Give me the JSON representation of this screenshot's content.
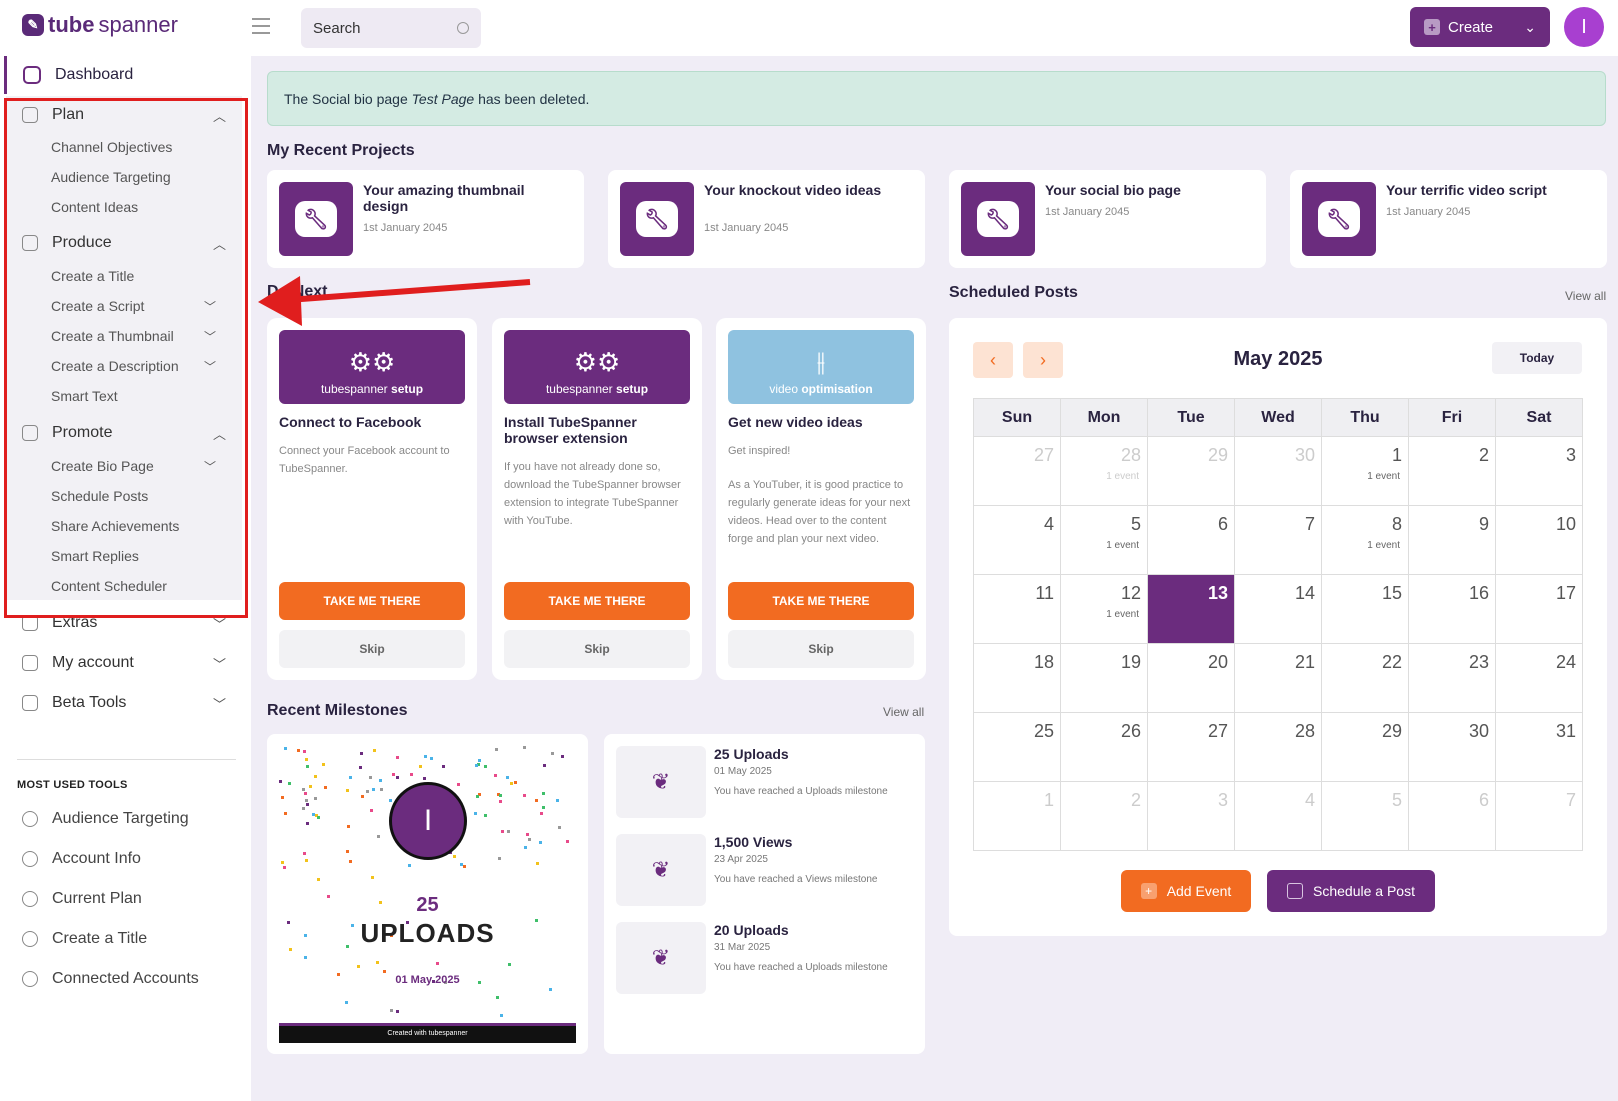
{
  "brand": {
    "logo_bold": "tube",
    "logo_rest": "spanner"
  },
  "search": {
    "placeholder": "Search"
  },
  "header": {
    "create_label": "Create",
    "avatar_letter": "I"
  },
  "sidebar": {
    "dashboard": "Dashboard",
    "plan": {
      "label": "Plan",
      "items": [
        "Channel Objectives",
        "Audience Targeting",
        "Content Ideas"
      ]
    },
    "produce": {
      "label": "Produce",
      "items": [
        "Create a Title",
        "Create a Script",
        "Create a Thumbnail",
        "Create a Description",
        "Smart Text"
      ]
    },
    "promote": {
      "label": "Promote",
      "items": [
        "Create Bio Page",
        "Schedule Posts",
        "Share Achievements",
        "Smart Replies",
        "Content Scheduler"
      ]
    },
    "extras": "Extras",
    "my_account": "My account",
    "beta_tools": "Beta Tools",
    "most_used_title": "MOST USED TOOLS",
    "most_used": [
      "Audience Targeting",
      "Account Info",
      "Current Plan",
      "Create a Title",
      "Connected Accounts"
    ]
  },
  "alert": {
    "prefix": "The Social bio page ",
    "name": "Test Page",
    "suffix": " has been deleted."
  },
  "recent_projects": {
    "title": "My Recent Projects",
    "items": [
      {
        "title": "Your amazing thumbnail design",
        "date": "1st January 2045"
      },
      {
        "title": "Your knockout video ideas",
        "date": "1st January 2045"
      },
      {
        "title": "Your social bio page",
        "date": "1st January 2045"
      },
      {
        "title": "Your terrific video script",
        "date": "1st January 2045"
      }
    ]
  },
  "do_next": {
    "title": "Do Next",
    "cards": [
      {
        "banner_a": "tubespanner",
        "banner_b": "setup",
        "title": "Connect to Facebook",
        "desc": "Connect your Facebook account to TubeSpanner.",
        "desc2": "",
        "cta": "TAKE ME THERE",
        "skip": "Skip"
      },
      {
        "banner_a": "tubespanner",
        "banner_b": "setup",
        "title": "Install TubeSpanner browser extension",
        "desc": "If you have not already done so, download the TubeSpanner browser extension to integrate TubeSpanner with YouTube.",
        "desc2": "",
        "cta": "TAKE ME THERE",
        "skip": "Skip"
      },
      {
        "banner_a": "video",
        "banner_b": "optimisation",
        "title": "Get new video ideas",
        "desc": "Get inspired!",
        "desc2": "As a YouTuber, it is good practice to regularly generate ideas for your next videos. Head over to the content forge and plan your next video.",
        "cta": "TAKE ME THERE",
        "skip": "Skip"
      }
    ]
  },
  "milestones": {
    "title": "Recent Milestones",
    "view_all": "View all",
    "feature": {
      "avatar_letter": "I",
      "number": "25",
      "label": "UPLOADS",
      "date": "01 May 2025",
      "footer": "Created with tubespanner"
    },
    "items": [
      {
        "title": "25 Uploads",
        "date": "01 May 2025",
        "text": "You have reached a Uploads milestone"
      },
      {
        "title": "1,500 Views",
        "date": "23 Apr 2025",
        "text": "You have reached a Views milestone"
      },
      {
        "title": "20 Uploads",
        "date": "31 Mar 2025",
        "text": "You have reached a Uploads milestone"
      }
    ]
  },
  "scheduled": {
    "title": "Scheduled Posts",
    "view_all": "View all",
    "month": "May 2025",
    "today": "Today",
    "weekdays": [
      "Sun",
      "Mon",
      "Tue",
      "Wed",
      "Thu",
      "Fri",
      "Sat"
    ],
    "weeks": [
      [
        {
          "d": "27",
          "o": true
        },
        {
          "d": "28",
          "o": true,
          "e": "1 event"
        },
        {
          "d": "29",
          "o": true
        },
        {
          "d": "30",
          "o": true
        },
        {
          "d": "1",
          "e": "1 event"
        },
        {
          "d": "2"
        },
        {
          "d": "3"
        }
      ],
      [
        {
          "d": "4"
        },
        {
          "d": "5",
          "e": "1 event"
        },
        {
          "d": "6"
        },
        {
          "d": "7"
        },
        {
          "d": "8",
          "e": "1 event"
        },
        {
          "d": "9"
        },
        {
          "d": "10"
        }
      ],
      [
        {
          "d": "11"
        },
        {
          "d": "12",
          "e": "1 event"
        },
        {
          "d": "13",
          "s": true
        },
        {
          "d": "14"
        },
        {
          "d": "15"
        },
        {
          "d": "16"
        },
        {
          "d": "17"
        }
      ],
      [
        {
          "d": "18"
        },
        {
          "d": "19"
        },
        {
          "d": "20"
        },
        {
          "d": "21"
        },
        {
          "d": "22"
        },
        {
          "d": "23"
        },
        {
          "d": "24"
        }
      ],
      [
        {
          "d": "25"
        },
        {
          "d": "26"
        },
        {
          "d": "27"
        },
        {
          "d": "28"
        },
        {
          "d": "29"
        },
        {
          "d": "30"
        },
        {
          "d": "31"
        }
      ],
      [
        {
          "d": "1",
          "o": true
        },
        {
          "d": "2",
          "o": true
        },
        {
          "d": "3",
          "o": true
        },
        {
          "d": "4",
          "o": true
        },
        {
          "d": "5",
          "o": true
        },
        {
          "d": "6",
          "o": true
        },
        {
          "d": "7",
          "o": true
        }
      ]
    ],
    "add_event": "Add Event",
    "schedule_post": "Schedule a Post"
  },
  "colors": {
    "brand": "#6b2c7e",
    "accent": "#f26b21",
    "highlight": "#e01e1e"
  }
}
